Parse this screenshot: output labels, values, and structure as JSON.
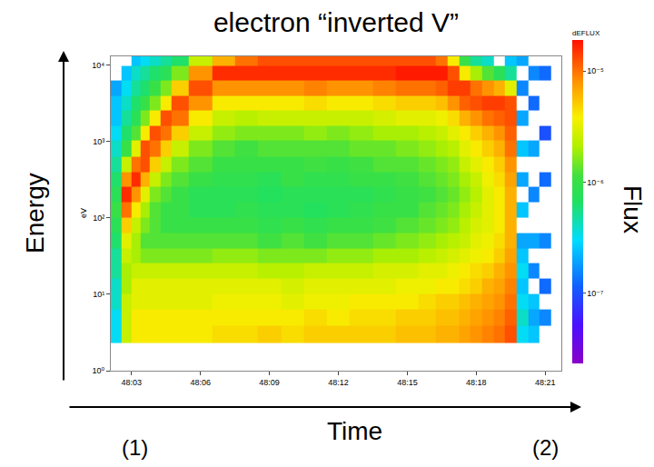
{
  "chart_data": {
    "type": "heatmap",
    "title": "electron “inverted V”",
    "xlabel": "Time",
    "ylabel": "Energy",
    "annotations": [
      "eV",
      "Flux",
      "(1)",
      "(2)"
    ],
    "log": "y",
    "grid": false,
    "xlim": [
      2.1,
      21.7
    ],
    "xticks": [
      {
        "value": 3,
        "label": "48:03"
      },
      {
        "value": 6,
        "label": "48:06"
      },
      {
        "value": 9,
        "label": "48:09"
      },
      {
        "value": 12,
        "label": "48:12"
      },
      {
        "value": 15,
        "label": "48:15"
      },
      {
        "value": 18,
        "label": "48:18"
      },
      {
        "value": 21,
        "label": "48:21"
      }
    ],
    "ylim": [
      1,
      13000
    ],
    "yticks": [
      {
        "value": 1,
        "label": "10⁰"
      },
      {
        "value": 10,
        "label": "10¹"
      },
      {
        "value": 100,
        "label": "10²"
      },
      {
        "value": 1000,
        "label": "10³"
      },
      {
        "value": 10000,
        "label": "10⁴"
      }
    ],
    "x": [
      2.3,
      2.8,
      3.2,
      3.6,
      4,
      4.5,
      5,
      6,
      7,
      8,
      9,
      10,
      11,
      12,
      13,
      14,
      15,
      16,
      16.5,
      17,
      17.5,
      18,
      18.5,
      19,
      19.5,
      20,
      20.5,
      21
    ],
    "y": [
      3,
      5,
      8,
      13,
      20,
      32,
      50,
      80,
      130,
      200,
      320,
      500,
      800,
      1300,
      2000,
      3200,
      5000,
      8000,
      12000
    ],
    "z": [
      [
        -6.5,
        -6.5,
        -6.4,
        -6.4,
        -6.3,
        -6.3,
        -6.2,
        -6.1,
        -6.0,
        -6.1,
        -6.2,
        -6.3,
        -6.4,
        -6.5,
        -6.6,
        -6.6,
        -6.7,
        null,
        null
      ],
      [
        -5.6,
        -5.6,
        -5.6,
        -5.7,
        -5.7,
        -5.6,
        -5.5,
        -5.3,
        -5.0,
        -4.8,
        -5.1,
        -5.6,
        -6.0,
        -6.2,
        -6.3,
        -6.4,
        -6.5,
        -6.6,
        null
      ],
      [
        -5.4,
        -5.4,
        -5.5,
        -5.5,
        -5.6,
        -5.7,
        -5.7,
        -5.6,
        -5.4,
        -5.1,
        -4.8,
        -5.0,
        -5.5,
        -5.9,
        -6.1,
        -6.2,
        -6.3,
        -6.4,
        -6.6
      ],
      [
        -5.4,
        -5.4,
        -5.5,
        -5.5,
        -5.6,
        -5.8,
        -5.9,
        -5.8,
        -5.7,
        -5.5,
        -5.2,
        -4.9,
        -4.9,
        -5.4,
        -5.8,
        -6.0,
        -6.2,
        -6.3,
        -6.5
      ],
      [
        -5.4,
        -5.4,
        -5.5,
        -5.5,
        -5.6,
        -5.8,
        -5.9,
        -5.9,
        -5.9,
        -5.8,
        -5.6,
        -5.3,
        -5.0,
        -4.9,
        -5.4,
        -5.8,
        -6.0,
        -6.2,
        -6.4
      ],
      [
        -5.4,
        -5.4,
        -5.5,
        -5.5,
        -5.6,
        -5.8,
        -5.9,
        -6.0,
        -6.0,
        -5.9,
        -5.8,
        -5.6,
        -5.3,
        -5.0,
        -4.9,
        -5.4,
        -5.8,
        -6.1,
        -6.3
      ],
      [
        -5.4,
        -5.4,
        -5.5,
        -5.5,
        -5.6,
        -5.8,
        -5.9,
        -6.0,
        -6.0,
        -6.0,
        -5.9,
        -5.8,
        -5.6,
        -5.3,
        -5.0,
        -4.9,
        -5.3,
        -5.8,
        -6.2
      ],
      [
        -5.4,
        -5.4,
        -5.5,
        -5.5,
        -5.6,
        -5.8,
        -5.9,
        -6.0,
        -6.1,
        -6.1,
        -6.0,
        -5.9,
        -5.8,
        -5.6,
        -5.4,
        -5.1,
        -4.9,
        -5.1,
        -5.6
      ],
      [
        -5.35,
        -5.4,
        -5.45,
        -5.5,
        -5.6,
        -5.75,
        -5.9,
        -6.0,
        -6.1,
        -6.1,
        -6.05,
        -6.0,
        -5.9,
        -5.75,
        -5.6,
        -5.4,
        -5.1,
        -4.8,
        -5.2
      ],
      [
        -5.35,
        -5.4,
        -5.45,
        -5.5,
        -5.6,
        -5.75,
        -5.9,
        -6.0,
        -6.05,
        -6.1,
        -6.05,
        -6.0,
        -5.95,
        -5.8,
        -5.65,
        -5.4,
        -5.1,
        -4.8,
        -5.0
      ],
      [
        -5.3,
        -5.4,
        -5.45,
        -5.5,
        -5.65,
        -5.8,
        -5.95,
        -6.05,
        -6.1,
        -6.15,
        -6.1,
        -6.0,
        -5.9,
        -5.8,
        -5.6,
        -5.4,
        -5.1,
        -4.8,
        -4.9
      ],
      [
        -5.35,
        -5.4,
        -5.5,
        -5.55,
        -5.65,
        -5.8,
        -5.9,
        -6.0,
        -6.1,
        -6.1,
        -6.0,
        -6.0,
        -5.9,
        -5.8,
        -5.6,
        -5.4,
        -5.1,
        -4.8,
        -4.9
      ],
      [
        -5.3,
        -5.35,
        -5.45,
        -5.5,
        -5.6,
        -5.8,
        -5.95,
        -6.05,
        -6.15,
        -6.1,
        -6.05,
        -5.95,
        -5.9,
        -5.75,
        -5.6,
        -5.35,
        -5.05,
        -4.8,
        -4.9
      ],
      [
        -5.3,
        -5.4,
        -5.45,
        -5.5,
        -5.6,
        -5.75,
        -5.9,
        -6.0,
        -6.1,
        -6.1,
        -6.05,
        -6.0,
        -5.9,
        -5.8,
        -5.6,
        -5.4,
        -5.1,
        -4.8,
        -4.9
      ],
      [
        -5.3,
        -5.35,
        -5.4,
        -5.5,
        -5.6,
        -5.75,
        -5.9,
        -6.0,
        -6.05,
        -6.1,
        -6.0,
        -5.95,
        -5.85,
        -5.75,
        -5.6,
        -5.4,
        -5.1,
        -4.8,
        -4.9
      ],
      [
        -5.3,
        -5.35,
        -5.4,
        -5.5,
        -5.55,
        -5.7,
        -5.85,
        -5.95,
        -6.0,
        -6.05,
        -6.0,
        -5.9,
        -5.85,
        -5.7,
        -5.55,
        -5.35,
        -5.05,
        -4.8,
        -4.9
      ],
      [
        -5.25,
        -5.3,
        -5.4,
        -5.45,
        -5.55,
        -5.7,
        -5.8,
        -5.9,
        -6.0,
        -6.0,
        -5.95,
        -5.9,
        -5.8,
        -5.7,
        -5.5,
        -5.3,
        -5.0,
        -4.75,
        -4.9
      ],
      [
        -5.25,
        -5.3,
        -5.35,
        -5.45,
        -5.5,
        -5.65,
        -5.75,
        -5.85,
        -5.9,
        -5.95,
        -5.9,
        -5.85,
        -5.75,
        -5.65,
        -5.5,
        -5.3,
        -5.0,
        -4.75,
        -4.9
      ],
      [
        -5.2,
        -5.25,
        -5.3,
        -5.4,
        -5.5,
        -5.6,
        -5.7,
        -5.8,
        -5.85,
        -5.9,
        -5.85,
        -5.8,
        -5.7,
        -5.6,
        -5.45,
        -5.25,
        -4.95,
        -4.75,
        -5.0
      ],
      [
        -5.2,
        -5.25,
        -5.3,
        -5.4,
        -5.45,
        -5.55,
        -5.65,
        -5.75,
        -5.8,
        -5.85,
        -5.8,
        -5.75,
        -5.65,
        -5.5,
        -5.35,
        -5.1,
        -4.85,
        -4.9,
        -5.4
      ],
      [
        -5.15,
        -5.2,
        -5.25,
        -5.35,
        -5.4,
        -5.5,
        -5.6,
        -5.65,
        -5.7,
        -5.75,
        -5.7,
        -5.6,
        -5.5,
        -5.4,
        -5.2,
        -4.95,
        -4.85,
        -5.4,
        -6.0
      ],
      [
        -5.1,
        -5.15,
        -5.2,
        -5.3,
        -5.35,
        -5.45,
        -5.5,
        -5.55,
        -5.6,
        -5.65,
        -5.6,
        -5.5,
        -5.4,
        -5.3,
        -5.1,
        -4.9,
        -5.0,
        -5.7,
        -6.3
      ],
      [
        -5.05,
        -5.1,
        -5.15,
        -5.2,
        -5.3,
        -5.4,
        -5.45,
        -5.5,
        -5.5,
        -5.5,
        -5.45,
        -5.4,
        -5.3,
        -5.2,
        -5.0,
        -4.85,
        -5.1,
        -5.9,
        -6.4
      ],
      [
        -5.0,
        -5.05,
        -5.1,
        -5.15,
        -5.2,
        -5.3,
        -5.35,
        -5.4,
        -5.4,
        -5.4,
        -5.35,
        -5.3,
        -5.2,
        -5.1,
        -4.95,
        -4.85,
        -5.2,
        -6.1,
        null
      ],
      [
        -4.9,
        -4.95,
        -5.0,
        -5.05,
        -5.1,
        -5.15,
        -5.2,
        -5.2,
        -5.2,
        -5.2,
        -5.15,
        -5.1,
        -5.0,
        -4.95,
        -4.9,
        -4.9,
        -5.5,
        -6.3,
        -6.6
      ],
      [
        -6.5,
        -6.4,
        -6.5,
        -6.6,
        -6.5,
        -6.6,
        -6.7,
        null,
        -6.6,
        null,
        -6.7,
        null,
        -6.6,
        null,
        -6.7,
        null,
        -6.8,
        null,
        -6.7
      ],
      [
        -6.6,
        -6.7,
        -6.6,
        null,
        -6.8,
        null,
        -6.7,
        null,
        null,
        -6.8,
        null,
        null,
        -6.7,
        null,
        null,
        -6.9,
        null,
        -6.8,
        null
      ],
      [
        null,
        -6.8,
        null,
        -6.9,
        null,
        null,
        -6.8,
        null,
        null,
        null,
        -6.9,
        null,
        null,
        -7.0,
        null,
        null,
        null,
        -6.9,
        null
      ]
    ],
    "colorbar": {
      "title": "dEFLUX",
      "range": [
        -7.63,
        -4.72
      ],
      "ticks": [
        {
          "value": -5,
          "label": "10⁻⁵"
        },
        {
          "value": -6,
          "label": "10⁻⁶"
        },
        {
          "value": -7,
          "label": "10⁻⁷"
        }
      ]
    }
  }
}
